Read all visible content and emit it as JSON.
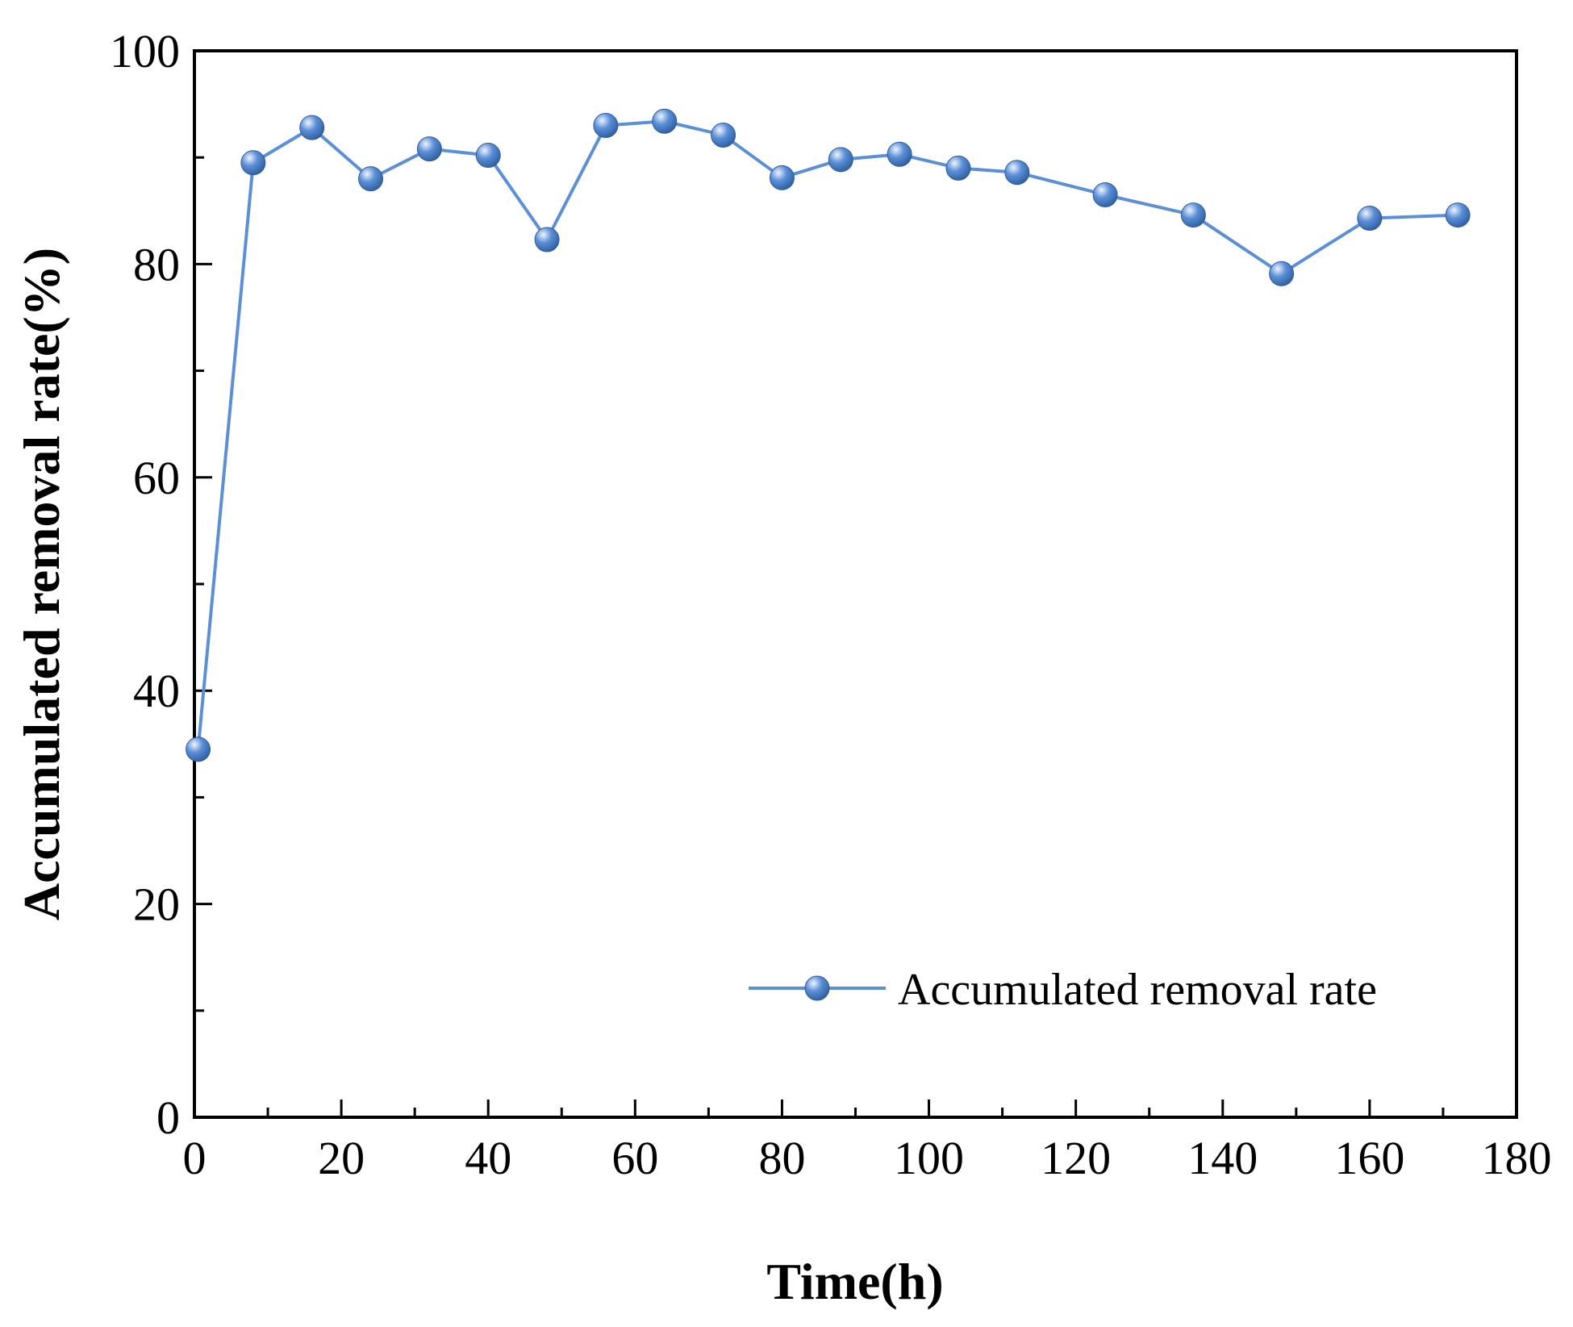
{
  "colors": {
    "series": "#5b8fd6",
    "marker_highlight": "#eef4ff",
    "marker_shadow": "#2f5d9f",
    "axis": "#000000",
    "background": "#ffffff"
  },
  "chart_data": {
    "type": "line",
    "title": "",
    "xlabel": "Time(h)",
    "ylabel": "Accumulated removal rate(%)",
    "xlim": [
      0,
      180
    ],
    "ylim": [
      0,
      100
    ],
    "xticks": [
      0,
      20,
      40,
      60,
      80,
      100,
      120,
      140,
      160,
      180
    ],
    "yticks": [
      0,
      20,
      40,
      60,
      80,
      100
    ],
    "x_minor_step": 10,
    "y_minor_step": 10,
    "grid": false,
    "legend_position": "lower-right",
    "series": [
      {
        "name": "Accumulated removal rate",
        "marker": "sphere",
        "x": [
          0.5,
          8,
          16,
          24,
          32,
          40,
          48,
          56,
          64,
          72,
          80,
          88,
          96,
          104,
          112,
          124,
          136,
          148,
          160,
          172
        ],
        "y": [
          34.5,
          89.5,
          92.8,
          88.0,
          90.8,
          90.2,
          82.3,
          93.0,
          93.4,
          92.1,
          88.1,
          89.8,
          90.3,
          89.0,
          88.6,
          86.5,
          84.6,
          79.1,
          84.3,
          84.6
        ]
      }
    ]
  }
}
